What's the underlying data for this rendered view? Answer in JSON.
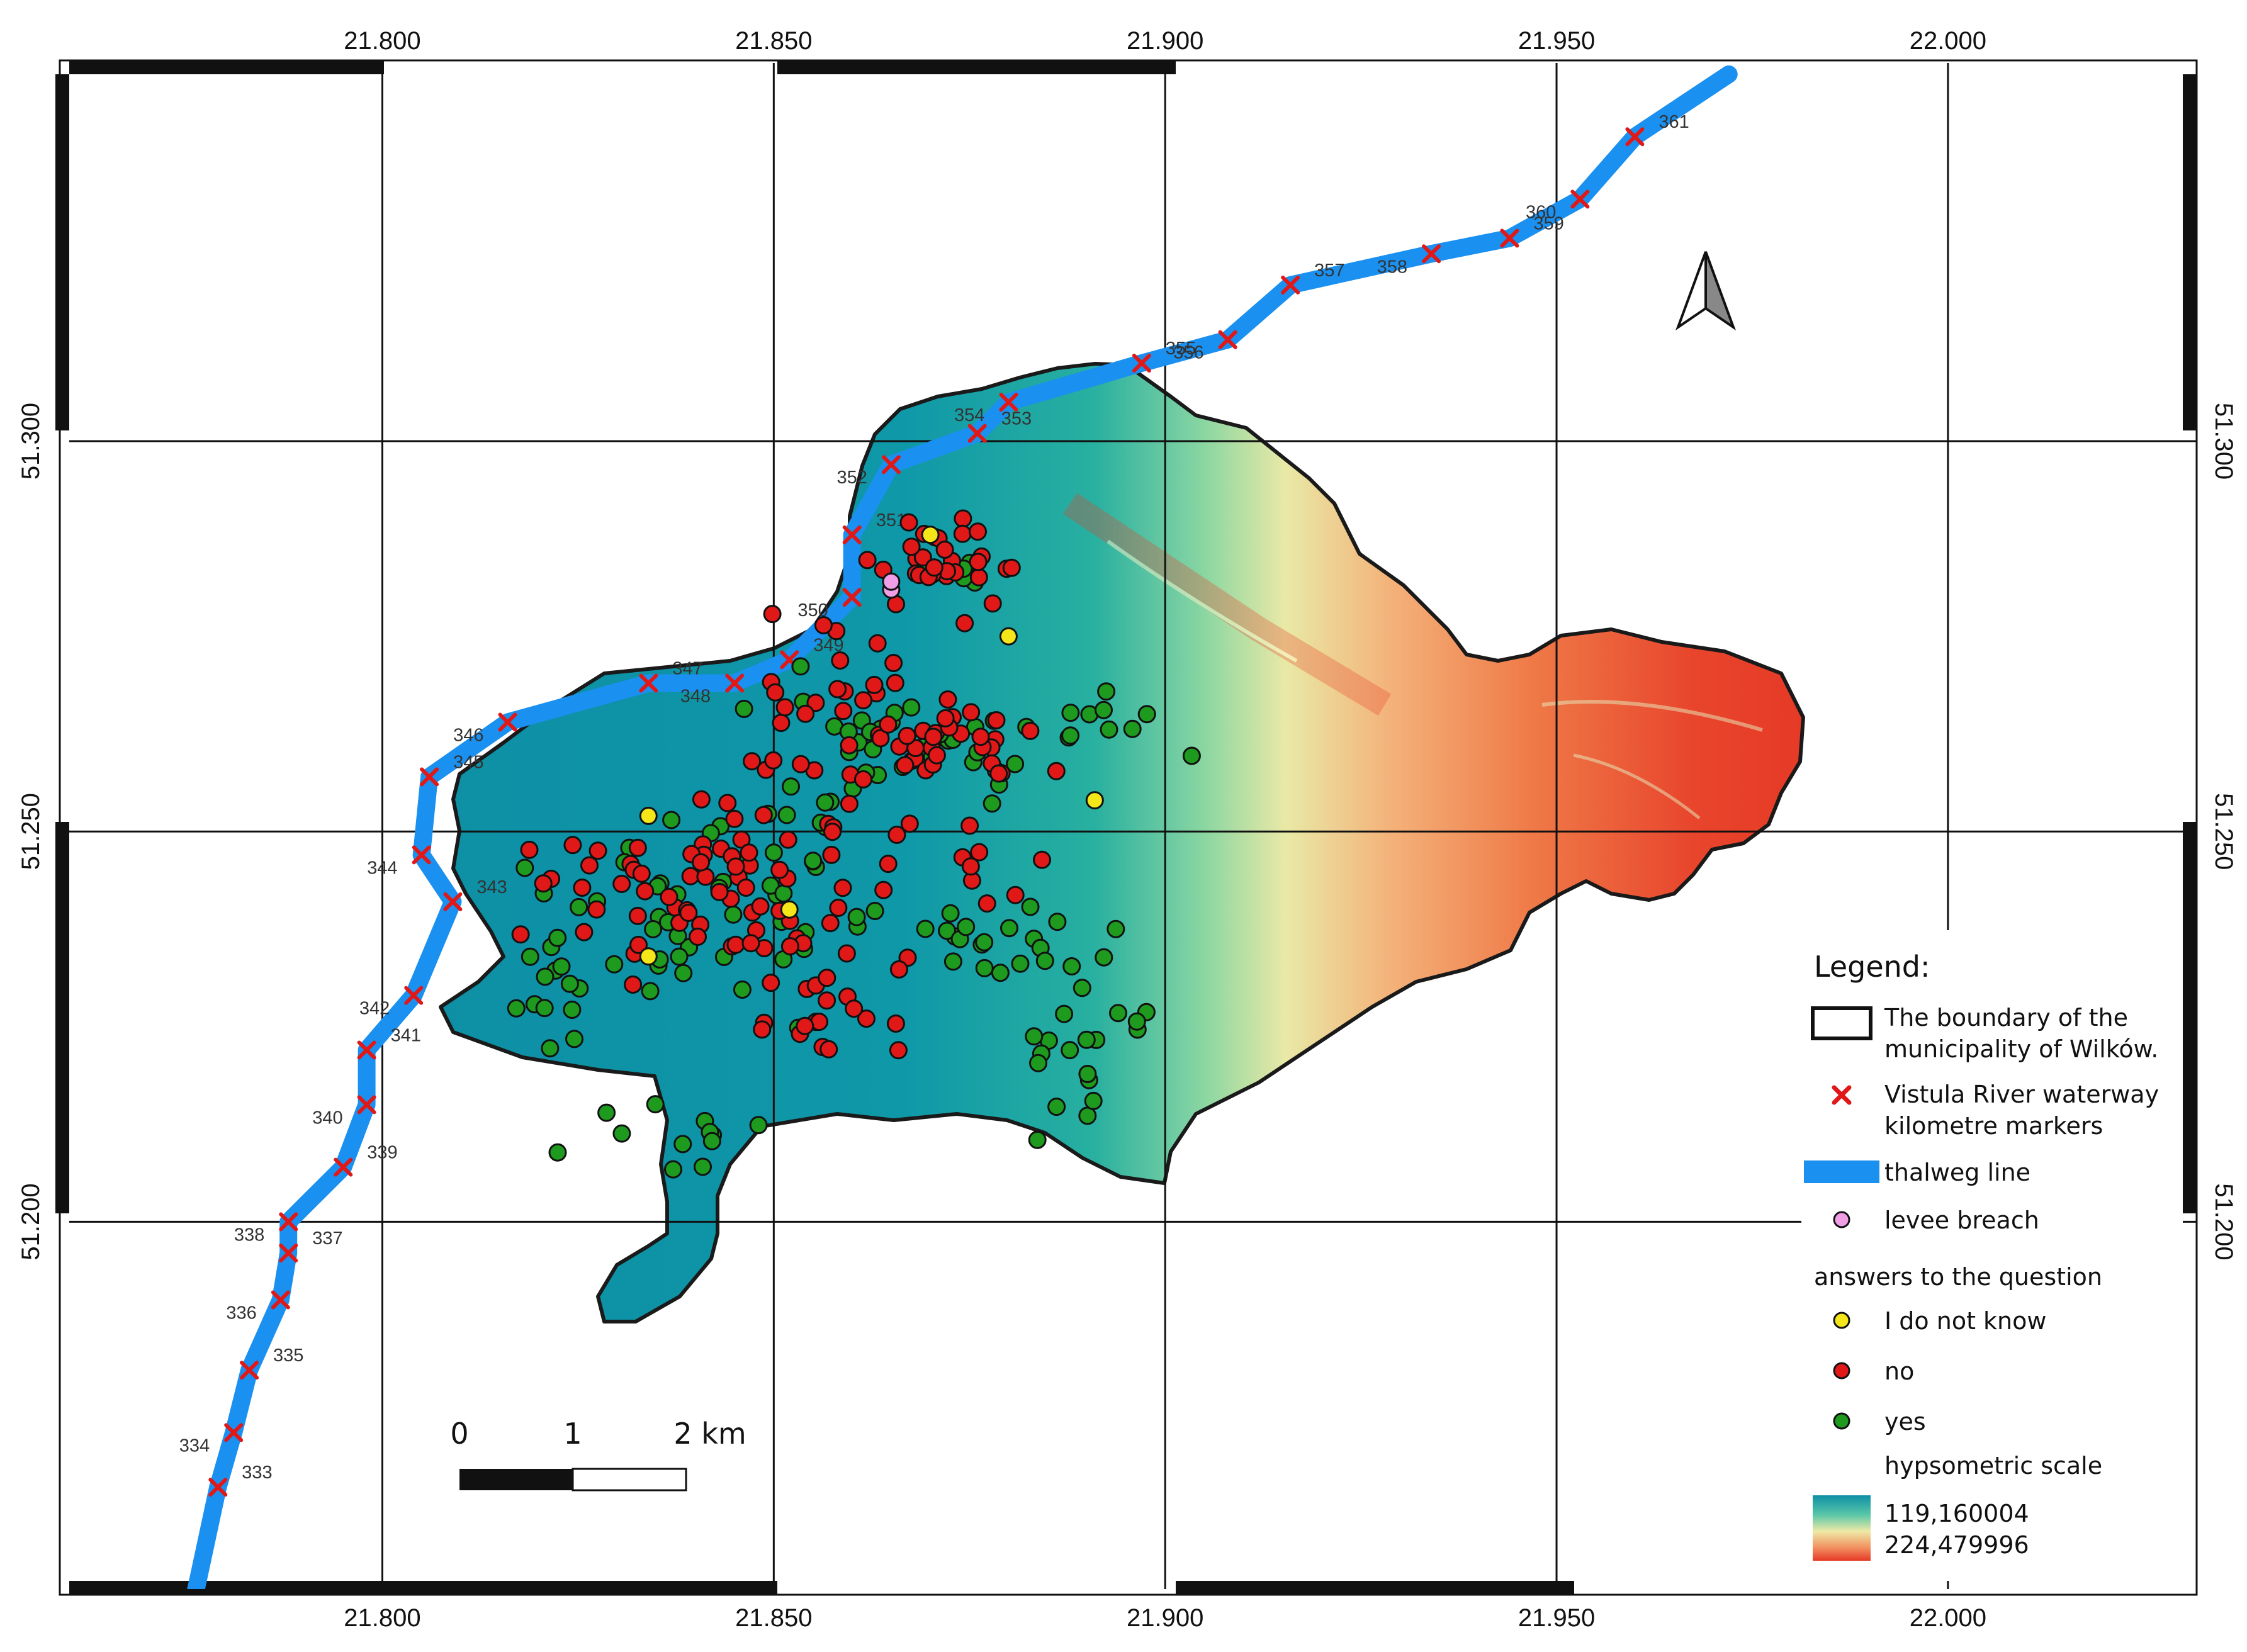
{
  "map": {
    "x_ticks": [
      "21.800",
      "21.850",
      "21.900",
      "21.950",
      "22.000"
    ],
    "y_ticks": [
      "51.300",
      "51.250",
      "51.200"
    ],
    "x_range": [
      21.76,
      22.03
    ],
    "y_range": [
      51.154,
      51.347
    ],
    "grid": true
  },
  "river": {
    "name": "Vistula",
    "color": "#1a90f0",
    "km_markers": [
      {
        "km": "333",
        "lon": 21.779,
        "lat": 51.166
      },
      {
        "km": "334",
        "lon": 21.781,
        "lat": 51.173
      },
      {
        "km": "335",
        "lon": 21.783,
        "lat": 51.181
      },
      {
        "km": "336",
        "lon": 21.787,
        "lat": 51.19
      },
      {
        "km": "337",
        "lon": 21.788,
        "lat": 51.196
      },
      {
        "km": "338",
        "lon": 21.788,
        "lat": 51.2
      },
      {
        "km": "339",
        "lon": 21.795,
        "lat": 51.207
      },
      {
        "km": "340",
        "lon": 21.798,
        "lat": 51.215
      },
      {
        "km": "341",
        "lon": 21.798,
        "lat": 51.222
      },
      {
        "km": "342",
        "lon": 21.804,
        "lat": 51.229
      },
      {
        "km": "343",
        "lon": 21.809,
        "lat": 51.241
      },
      {
        "km": "344",
        "lon": 21.805,
        "lat": 51.247
      },
      {
        "km": "345",
        "lon": 21.806,
        "lat": 51.257
      },
      {
        "km": "346",
        "lon": 21.816,
        "lat": 51.264
      },
      {
        "km": "347",
        "lon": 21.834,
        "lat": 51.269
      },
      {
        "km": "348",
        "lon": 21.845,
        "lat": 51.269
      },
      {
        "km": "349",
        "lon": 21.852,
        "lat": 51.272
      },
      {
        "km": "350",
        "lon": 21.86,
        "lat": 51.28
      },
      {
        "km": "351",
        "lon": 21.86,
        "lat": 51.288
      },
      {
        "km": "352",
        "lon": 21.865,
        "lat": 51.297
      },
      {
        "km": "353",
        "lon": 21.876,
        "lat": 51.301
      },
      {
        "km": "354",
        "lon": 21.88,
        "lat": 51.305
      },
      {
        "km": "355",
        "lon": 21.897,
        "lat": 51.31
      },
      {
        "km": "356",
        "lon": 21.908,
        "lat": 51.313
      },
      {
        "km": "357",
        "lon": 21.916,
        "lat": 51.32
      },
      {
        "km": "358",
        "lon": 21.934,
        "lat": 51.324
      },
      {
        "km": "359",
        "lon": 21.944,
        "lat": 51.326
      },
      {
        "km": "360",
        "lon": 21.953,
        "lat": 51.331
      },
      {
        "km": "361",
        "lon": 21.96,
        "lat": 51.339
      }
    ]
  },
  "boundary_color": "#1a1a1a",
  "elevation": {
    "min": "119,160004",
    "max": "224,479996",
    "low_color": "#0e8fa5",
    "high_color": "#e8402a"
  },
  "answer_colors": {
    "yes": "#1e9a1e",
    "no": "#e01818",
    "dont_know": "#f5e61a",
    "levee": "#f09ee6"
  },
  "survey": {
    "levee_breaches": [
      [
        21.865,
        51.281
      ],
      [
        21.865,
        51.282
      ]
    ],
    "dont_know": [
      [
        21.87,
        51.288
      ],
      [
        21.88,
        51.275
      ],
      [
        21.834,
        51.252
      ],
      [
        21.852,
        51.24
      ],
      [
        21.834,
        51.234
      ],
      [
        21.891,
        51.254
      ]
    ],
    "no_clusters": [
      {
        "center": [
          21.872,
          51.284
        ],
        "sx": 0.004,
        "sy": 0.003,
        "n": 30
      },
      {
        "center": [
          21.86,
          51.265
        ],
        "sx": 0.007,
        "sy": 0.005,
        "n": 34
      },
      {
        "center": [
          21.876,
          51.262
        ],
        "sx": 0.006,
        "sy": 0.003,
        "n": 22
      },
      {
        "center": [
          21.848,
          51.246
        ],
        "sx": 0.009,
        "sy": 0.006,
        "n": 40
      },
      {
        "center": [
          21.84,
          51.238
        ],
        "sx": 0.01,
        "sy": 0.005,
        "n": 30
      },
      {
        "center": [
          21.855,
          51.226
        ],
        "sx": 0.007,
        "sy": 0.004,
        "n": 18
      },
      {
        "center": [
          21.824,
          51.242
        ],
        "sx": 0.005,
        "sy": 0.004,
        "n": 10
      },
      {
        "center": [
          21.88,
          51.244
        ],
        "sx": 0.003,
        "sy": 0.005,
        "n": 8
      }
    ],
    "yes_clusters": [
      {
        "center": [
          21.872,
          51.283
        ],
        "sx": 0.003,
        "sy": 0.002,
        "n": 6
      },
      {
        "center": [
          21.862,
          51.262
        ],
        "sx": 0.006,
        "sy": 0.004,
        "n": 18
      },
      {
        "center": [
          21.874,
          51.26
        ],
        "sx": 0.005,
        "sy": 0.003,
        "n": 16
      },
      {
        "center": [
          21.88,
          51.236
        ],
        "sx": 0.006,
        "sy": 0.002,
        "n": 20
      },
      {
        "center": [
          21.84,
          51.24
        ],
        "sx": 0.01,
        "sy": 0.006,
        "n": 40
      },
      {
        "center": [
          21.838,
          51.212
        ],
        "sx": 0.006,
        "sy": 0.003,
        "n": 12
      },
      {
        "center": [
          21.822,
          51.228
        ],
        "sx": 0.004,
        "sy": 0.005,
        "n": 14
      },
      {
        "center": [
          21.887,
          51.222
        ],
        "sx": 0.003,
        "sy": 0.005,
        "n": 16
      },
      {
        "center": [
          21.894,
          51.264
        ],
        "sx": 0.006,
        "sy": 0.002,
        "n": 10
      },
      {
        "center": [
          21.86,
          51.246
        ],
        "sx": 0.006,
        "sy": 0.005,
        "n": 14
      },
      {
        "center": [
          21.898,
          51.226
        ],
        "sx": 0.003,
        "sy": 0.001,
        "n": 4
      }
    ]
  },
  "scalebar": {
    "labels": [
      "0",
      "1",
      "2 km"
    ]
  },
  "legend": {
    "title": "Legend:",
    "boundary_line1": "The boundary of the",
    "boundary_line2": "municipality of Wilków.",
    "markers_line1": "Vistula River waterway",
    "markers_line2": "kilometre markers",
    "thalweg": "thalweg line",
    "levee": "levee breach",
    "answers_heading": "answers to the question",
    "dont_know": "I do not know",
    "no": "no",
    "yes": "yes",
    "hypsometric": "hypsometric scale"
  }
}
